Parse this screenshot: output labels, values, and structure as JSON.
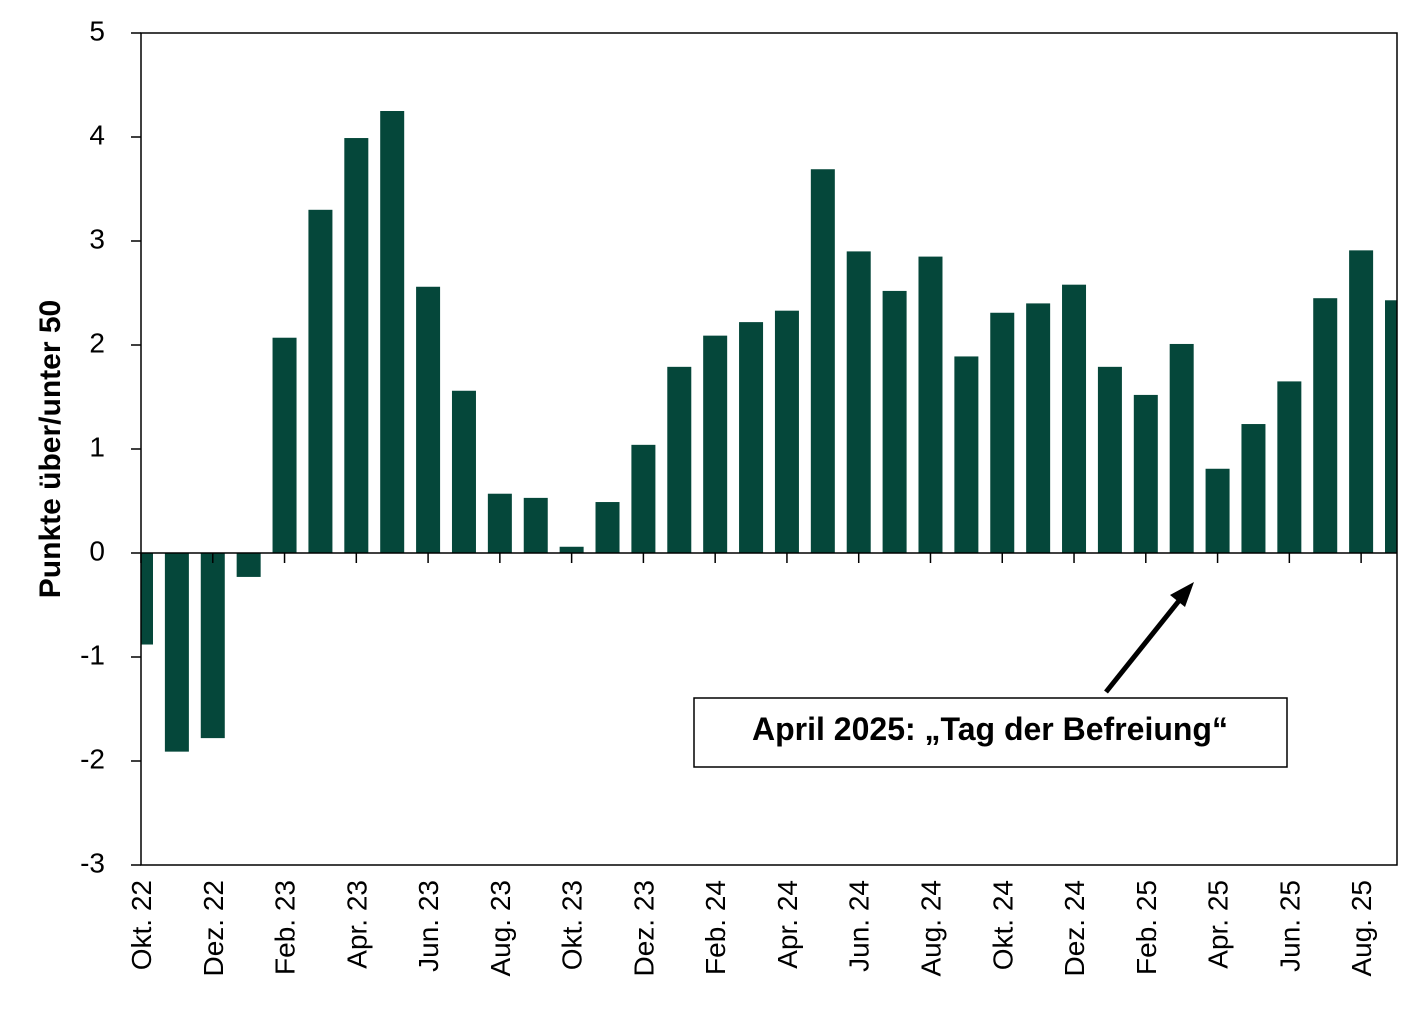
{
  "chart_data": {
    "type": "bar",
    "y_label": "Punkte über/unter 50",
    "annotation": "April 2025: „Tag der Befreiung“",
    "categories": [
      "Okt. 22",
      null,
      "Dez. 22",
      null,
      "Feb. 23",
      null,
      "Apr. 23",
      null,
      "Jun. 23",
      null,
      "Aug. 23",
      null,
      "Okt. 23",
      null,
      "Dez. 23",
      null,
      "Feb. 24",
      null,
      "Apr. 24",
      null,
      "Jun. 24",
      null,
      "Aug. 24",
      null,
      "Okt. 24",
      null,
      "Dez. 24",
      null,
      "Feb. 25",
      null,
      "Apr. 25",
      null,
      "Jun. 25",
      null,
      "Aug. 25",
      null
    ],
    "values": [
      -0.88,
      -1.91,
      -1.78,
      -0.23,
      2.07,
      3.3,
      3.99,
      4.25,
      2.56,
      1.56,
      0.57,
      0.53,
      0.06,
      0.49,
      1.04,
      1.79,
      2.09,
      2.22,
      2.33,
      3.69,
      2.9,
      2.52,
      2.85,
      1.89,
      2.31,
      2.4,
      2.58,
      1.79,
      1.52,
      2.01,
      0.81,
      1.24,
      1.65,
      2.45,
      2.91,
      2.43
    ],
    "color": "#05473a",
    "ylim": [
      -3,
      5
    ],
    "yticks": [
      -3,
      -2,
      -1,
      0,
      1,
      2,
      3,
      4,
      5
    ],
    "grid": false
  }
}
